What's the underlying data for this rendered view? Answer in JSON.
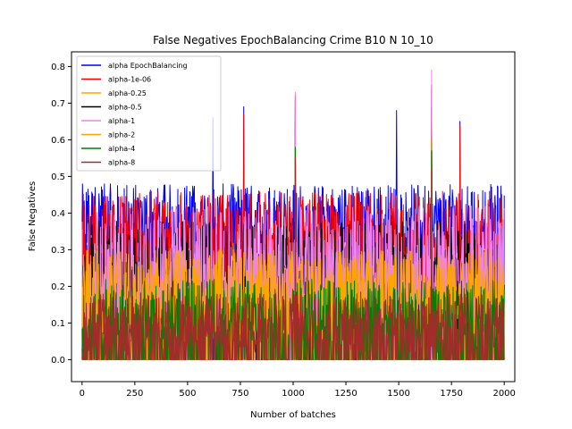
{
  "chart_data": {
    "type": "line",
    "title": "False Negatives EpochBalancing Crime B10 N 10_10",
    "xlabel": "Number of batches",
    "ylabel": "False Negatives",
    "xlim": [
      -50,
      2050
    ],
    "ylim": [
      -0.06,
      0.84
    ],
    "xticks": [
      0,
      250,
      500,
      750,
      1000,
      1250,
      1500,
      1750,
      2000
    ],
    "yticks": [
      0.0,
      0.1,
      0.2,
      0.3,
      0.4,
      0.5,
      0.6,
      0.7,
      0.8
    ],
    "grid": false,
    "legend_position": "top-left",
    "x_range": [
      0,
      2000
    ],
    "series": [
      {
        "name": "alpha EpochBalancing",
        "color": "#0000ff",
        "typical_low": 0.3,
        "typical_high": 0.48,
        "peaks": [
          {
            "x": 620,
            "y": 0.66
          },
          {
            "x": 765,
            "y": 0.69
          },
          {
            "x": 1010,
            "y": 0.72
          },
          {
            "x": 1490,
            "y": 0.68
          },
          {
            "x": 1655,
            "y": 0.75
          },
          {
            "x": 1790,
            "y": 0.65
          }
        ]
      },
      {
        "name": "alpha-1e-06",
        "color": "#ff0000",
        "typical_low": 0.22,
        "typical_high": 0.46,
        "peaks": [
          {
            "x": 765,
            "y": 0.67
          },
          {
            "x": 1010,
            "y": 0.71
          },
          {
            "x": 1655,
            "y": 0.74
          },
          {
            "x": 1790,
            "y": 0.64
          }
        ]
      },
      {
        "name": "alpha-0.25",
        "color": "#ffa500",
        "typical_low": 0.08,
        "typical_high": 0.32,
        "peaks": [
          {
            "x": 1010,
            "y": 0.6
          },
          {
            "x": 1655,
            "y": 0.66
          }
        ]
      },
      {
        "name": "alpha-0.5",
        "color": "#000000",
        "typical_low": 0.15,
        "typical_high": 0.38,
        "peaks": [
          {
            "x": 1010,
            "y": 0.65
          },
          {
            "x": 1655,
            "y": 0.69
          }
        ]
      },
      {
        "name": "alpha-1",
        "color": "#ee82ee",
        "typical_low": 0.12,
        "typical_high": 0.42,
        "peaks": [
          {
            "x": 1010,
            "y": 0.73
          },
          {
            "x": 1655,
            "y": 0.79
          }
        ]
      },
      {
        "name": "alpha-2",
        "color": "#ffa500",
        "typical_low": 0.1,
        "typical_high": 0.3,
        "peaks": [
          {
            "x": 1655,
            "y": 0.6
          }
        ]
      },
      {
        "name": "alpha-4",
        "color": "#008000",
        "typical_low": 0.05,
        "typical_high": 0.22,
        "peaks": [
          {
            "x": 1010,
            "y": 0.58
          },
          {
            "x": 1655,
            "y": 0.57
          }
        ]
      },
      {
        "name": "alpha-8",
        "color": "#a52a2a",
        "typical_low": 0.02,
        "typical_high": 0.18,
        "peaks": [
          {
            "x": 1010,
            "y": 0.55
          },
          {
            "x": 1655,
            "y": 0.52
          }
        ]
      }
    ]
  }
}
